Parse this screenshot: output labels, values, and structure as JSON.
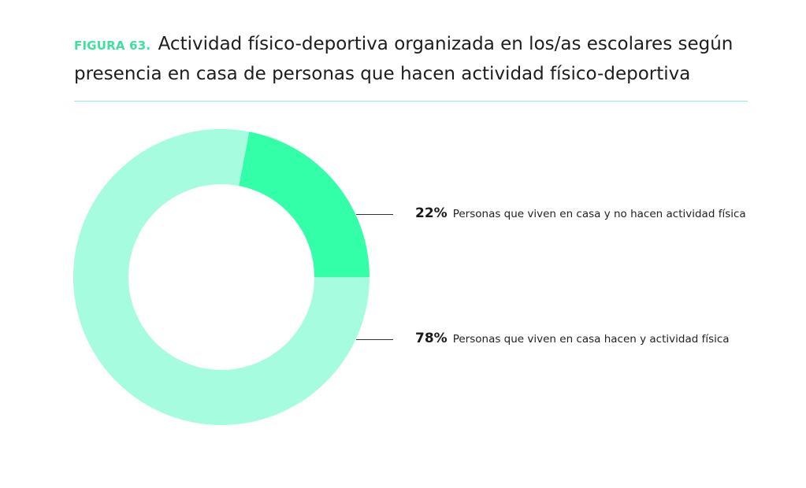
{
  "header": {
    "figure_label": "FIGURA 63.",
    "title": "Actividad físico-deportiva organizada en los/as escolares según presencia en casa de personas que hacen actividad físico-deportiva"
  },
  "chart_data": {
    "type": "pie",
    "donut": true,
    "series": [
      {
        "label": "Personas que viven en casa y no hacen actividad física",
        "value": 22,
        "value_text": "22%",
        "color": "#33ffa8"
      },
      {
        "label": "Personas que viven en casa hacen y actividad física",
        "value": 78,
        "value_text": "78%",
        "color": "#a6fcde"
      }
    ],
    "legend_placement": "right"
  },
  "colors": {
    "accent": "#3ee0a0",
    "divider": "#8ff0cd"
  }
}
